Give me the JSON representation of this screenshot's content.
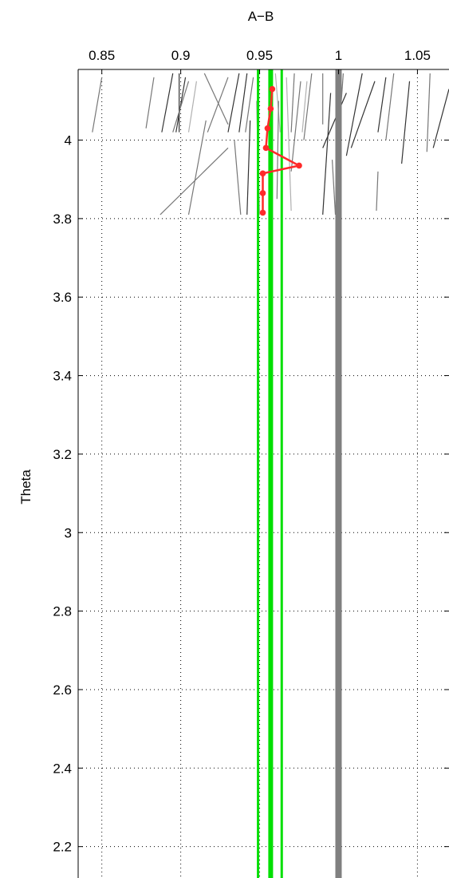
{
  "chart_data": {
    "type": "line",
    "title": "A−B",
    "xlabel": "",
    "ylabel": "Theta",
    "xlim": [
      0.835,
      1.07
    ],
    "ylim": [
      2.12,
      4.18
    ],
    "x_axis_position": "top",
    "grid": "dotted",
    "xticks": [
      0.85,
      0.9,
      0.95,
      1,
      1.05
    ],
    "xtick_labels": [
      "0.85",
      "0.9",
      "0.95",
      "1",
      "1.05"
    ],
    "yticks": [
      2.2,
      2.4,
      2.6,
      2.8,
      3.0,
      3.2,
      3.4,
      3.6,
      3.8,
      4.0
    ],
    "ytick_labels": [
      "2.2",
      "2.4",
      "2.6",
      "2.8",
      "3",
      "3.2",
      "3.4",
      "3.6",
      "3.8",
      "4"
    ],
    "colors": {
      "highlight": "#ff2a2a",
      "band": "#00e000",
      "reference": "#808080",
      "trace_dark": "#333333",
      "trace_mid": "#777777",
      "trace_light": "#b0b0b0"
    },
    "reference_line": {
      "x": 1.0
    },
    "band_lines": [
      {
        "x": 0.949,
        "role": "band-edge"
      },
      {
        "x": 0.957,
        "role": "band-center"
      },
      {
        "x": 0.964,
        "role": "band-edge"
      }
    ],
    "highlight_series": {
      "x": [
        0.958,
        0.957,
        0.955,
        0.954,
        0.975,
        0.952,
        0.952,
        0.952
      ],
      "y": [
        4.13,
        4.08,
        4.03,
        3.98,
        3.935,
        3.915,
        3.865,
        3.815
      ]
    },
    "background_traces": [
      {
        "shade": "mid",
        "x": [
          0.85,
          0.844
        ],
        "y": [
          4.16,
          4.02
        ]
      },
      {
        "shade": "mid",
        "x": [
          0.883,
          0.878
        ],
        "y": [
          4.16,
          4.03
        ]
      },
      {
        "shade": "dark",
        "x": [
          0.895,
          0.888
        ],
        "y": [
          4.17,
          4.02
        ]
      },
      {
        "shade": "dark",
        "x": [
          0.899,
          0.899
        ],
        "y": [
          4.17,
          4.02
        ]
      },
      {
        "shade": "dark",
        "x": [
          0.903,
          0.897
        ],
        "y": [
          4.16,
          4.02
        ]
      },
      {
        "shade": "mid",
        "x": [
          0.905,
          0.895
        ],
        "y": [
          4.15,
          4.02
        ]
      },
      {
        "shade": "light",
        "x": [
          0.91,
          0.905
        ],
        "y": [
          4.15,
          4.02
        ]
      },
      {
        "shade": "mid",
        "x": [
          0.915,
          0.93
        ],
        "y": [
          4.17,
          4.04
        ]
      },
      {
        "shade": "mid",
        "x": [
          0.916,
          0.905
        ],
        "y": [
          4.05,
          3.81
        ]
      },
      {
        "shade": "mid",
        "x": [
          0.93,
          0.887
        ],
        "y": [
          3.98,
          3.81
        ]
      },
      {
        "shade": "mid",
        "x": [
          0.93,
          0.917
        ],
        "y": [
          4.16,
          4.02
        ]
      },
      {
        "shade": "dark",
        "x": [
          0.937,
          0.93
        ],
        "y": [
          4.17,
          4.02
        ]
      },
      {
        "shade": "mid",
        "x": [
          0.934,
          0.938
        ],
        "y": [
          4.0,
          3.81
        ]
      },
      {
        "shade": "dark",
        "x": [
          0.942,
          0.937
        ],
        "y": [
          4.17,
          4.02
        ]
      },
      {
        "shade": "dark",
        "x": [
          0.944,
          0.942
        ],
        "y": [
          4.05,
          3.81
        ]
      },
      {
        "shade": "mid",
        "x": [
          0.946,
          0.941
        ],
        "y": [
          4.16,
          4.02
        ]
      },
      {
        "shade": "light",
        "x": [
          0.948,
          0.95
        ],
        "y": [
          4.1,
          3.81
        ]
      },
      {
        "shade": "light",
        "x": [
          0.96,
          0.963
        ],
        "y": [
          4.17,
          4.02
        ]
      },
      {
        "shade": "mid",
        "x": [
          0.962,
          0.961
        ],
        "y": [
          4.1,
          3.85
        ]
      },
      {
        "shade": "light",
        "x": [
          0.967,
          0.97
        ],
        "y": [
          4.16,
          3.82
        ]
      },
      {
        "shade": "mid",
        "x": [
          0.972,
          0.97
        ],
        "y": [
          4.17,
          4.02
        ]
      },
      {
        "shade": "mid",
        "x": [
          0.976,
          0.97
        ],
        "y": [
          4.15,
          3.92
        ]
      },
      {
        "shade": "light",
        "x": [
          0.98,
          0.977
        ],
        "y": [
          4.15,
          4.02
        ]
      },
      {
        "shade": "mid",
        "x": [
          0.983,
          0.978
        ],
        "y": [
          4.17,
          4.0
        ]
      },
      {
        "shade": "mid",
        "x": [
          0.99,
          0.99
        ],
        "y": [
          4.17,
          4.04
        ]
      },
      {
        "shade": "dark",
        "x": [
          0.995,
          0.99
        ],
        "y": [
          4.12,
          3.81
        ]
      },
      {
        "shade": "mid",
        "x": [
          0.996,
          0.998
        ],
        "y": [
          3.95,
          3.81
        ]
      },
      {
        "shade": "dark",
        "x": [
          1.005,
          0.99
        ],
        "y": [
          4.12,
          3.98
        ]
      },
      {
        "shade": "mid",
        "x": [
          1.003,
          1.0
        ],
        "y": [
          4.17,
          4.0
        ]
      },
      {
        "shade": "dark",
        "x": [
          1.015,
          1.005
        ],
        "y": [
          4.17,
          3.96
        ]
      },
      {
        "shade": "dark",
        "x": [
          1.023,
          1.008
        ],
        "y": [
          4.15,
          3.98
        ]
      },
      {
        "shade": "mid",
        "x": [
          1.025,
          1.024
        ],
        "y": [
          3.92,
          3.82
        ]
      },
      {
        "shade": "dark",
        "x": [
          1.03,
          1.025
        ],
        "y": [
          4.16,
          4.02
        ]
      },
      {
        "shade": "mid",
        "x": [
          1.035,
          1.03
        ],
        "y": [
          4.17,
          4.0
        ]
      },
      {
        "shade": "dark",
        "x": [
          1.045,
          1.04
        ],
        "y": [
          4.15,
          3.94
        ]
      },
      {
        "shade": "mid",
        "x": [
          1.058,
          1.056
        ],
        "y": [
          4.17,
          3.97
        ]
      },
      {
        "shade": "dark",
        "x": [
          1.07,
          1.06
        ],
        "y": [
          4.13,
          3.98
        ]
      }
    ]
  }
}
